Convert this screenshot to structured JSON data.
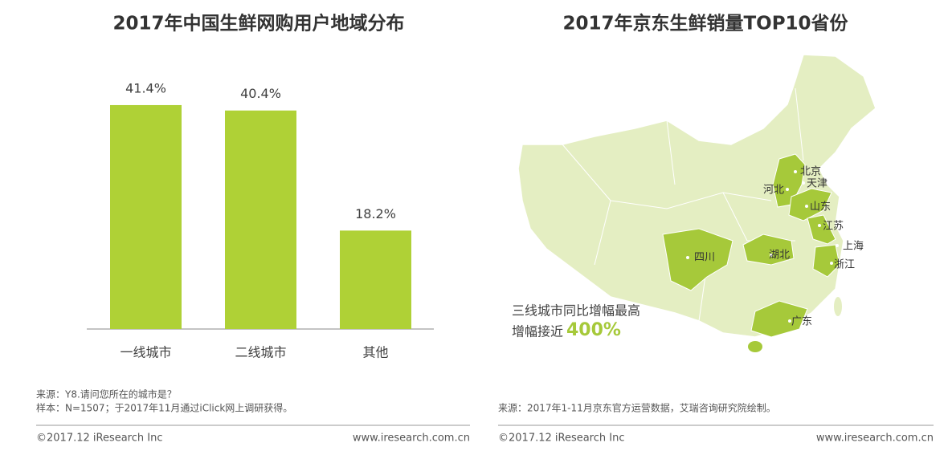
{
  "chart_data": {
    "type": "bar",
    "title": "2017年中国生鲜网购用户地域分布",
    "categories": [
      "一线城市",
      "二线城市",
      "其他"
    ],
    "values": [
      41.4,
      40.4,
      18.2
    ],
    "value_labels": [
      "41.4%",
      "40.4%",
      "18.2%"
    ],
    "color": "#afd136"
  },
  "left_source": [
    "来源：Y8.请问您所在的城市是？",
    "样本：N=1507；于2017年11月通过iClick网上调研获得。"
  ],
  "map_panel": {
    "title": "2017年京东生鲜销量TOP10省份",
    "provinces": [
      "北京",
      "天津",
      "河北",
      "山东",
      "江苏",
      "上海",
      "四川",
      "湖北",
      "浙江",
      "广东"
    ],
    "annotation": [
      "三线城市同比增幅最高",
      "增幅接近",
      "400%"
    ],
    "source": "来源：2017年1-11月京东官方运营数据，艾瑞咨询研究院绘制。"
  },
  "footer": {
    "left": [
      "©2017.12 iResearch Inc",
      "www.iresearch.com.cn"
    ],
    "right": [
      "©2017.12 iResearch Inc",
      "www.iresearch.com.cn"
    ]
  }
}
